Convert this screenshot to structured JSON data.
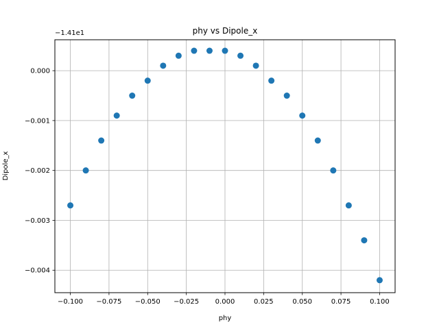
{
  "chart_data": {
    "type": "scatter",
    "title": "phy vs Dipole_x",
    "xlabel": "phy",
    "ylabel": "Dipole_x",
    "y_offset_text": "−1.41e1",
    "xlim": [
      -0.11,
      0.11
    ],
    "ylim": [
      -0.00445,
      0.00062
    ],
    "x_ticks": [
      -0.1,
      -0.075,
      -0.05,
      -0.025,
      0.0,
      0.025,
      0.05,
      0.075,
      0.1
    ],
    "x_tick_labels": [
      "−0.100",
      "−0.075",
      "−0.050",
      "−0.025",
      "0.000",
      "0.025",
      "0.050",
      "0.075",
      "0.100"
    ],
    "y_ticks": [
      0.0,
      -0.001,
      -0.002,
      -0.003,
      -0.004
    ],
    "y_tick_labels": [
      "0.000",
      "−0.001",
      "−0.002",
      "−0.003",
      "−0.004"
    ],
    "grid": true,
    "marker_color": "#1f77b4",
    "x": [
      -0.1,
      -0.09,
      -0.08,
      -0.07,
      -0.06,
      -0.05,
      -0.04,
      -0.03,
      -0.02,
      -0.01,
      0.0,
      0.01,
      0.02,
      0.03,
      0.04,
      0.05,
      0.06,
      0.07,
      0.08,
      0.09,
      0.1
    ],
    "y": [
      -0.0027,
      -0.002,
      -0.0014,
      -0.0009,
      -0.0005,
      -0.0002,
      0.0001,
      0.0003,
      0.0004,
      0.0004,
      0.0004,
      0.0003,
      0.0001,
      -0.0002,
      -0.0005,
      -0.0009,
      -0.0014,
      -0.002,
      -0.0027,
      -0.0034,
      -0.0042
    ]
  }
}
